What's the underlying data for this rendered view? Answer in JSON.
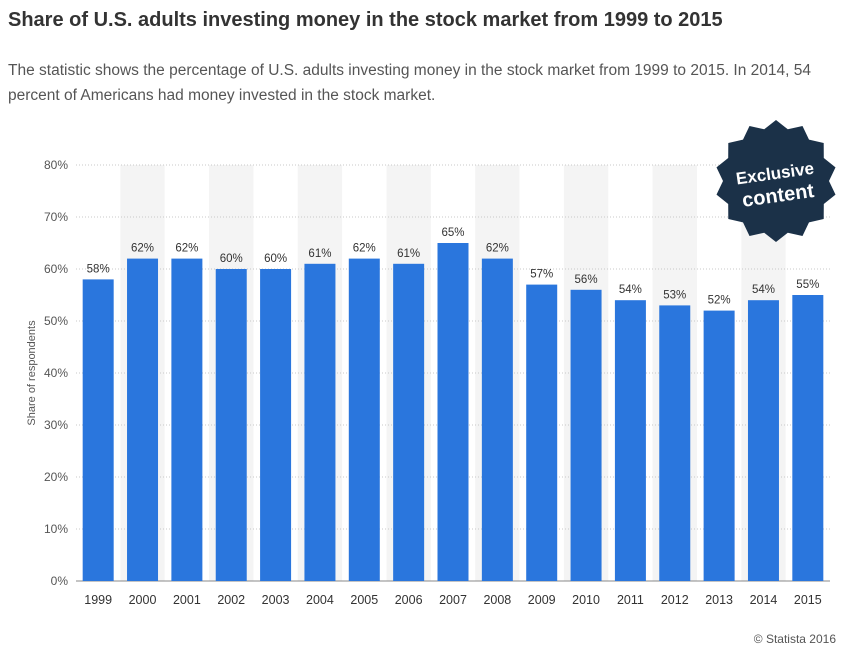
{
  "page": {
    "title": "Share of U.S. adults investing money in the stock market from 1999 to 2015",
    "description": "The statistic shows the percentage of U.S. adults investing money in the stock market from 1999 to 2015. In 2014, 54 percent of Americans had money invested in the stock market.",
    "badge_line1": "Exclusive",
    "badge_line2": "content",
    "copyright": "© Statista 2016"
  },
  "colors": {
    "bar": "#2a76dd",
    "band": "#f4f4f4",
    "grid": "#c8c8c8",
    "badge": "#1b3148",
    "text": "#333333"
  },
  "chart_data": {
    "type": "bar",
    "title": "",
    "xlabel": "",
    "ylabel": "Share of respondents",
    "categories": [
      "1999",
      "2000",
      "2001",
      "2002",
      "2003",
      "2004",
      "2005",
      "2006",
      "2007",
      "2008",
      "2009",
      "2010",
      "2011",
      "2012",
      "2013",
      "2014",
      "2015"
    ],
    "values": [
      58,
      62,
      62,
      60,
      60,
      61,
      62,
      61,
      65,
      62,
      57,
      56,
      54,
      53,
      52,
      54,
      55
    ],
    "data_labels": [
      "58%",
      "62%",
      "62%",
      "60%",
      "60%",
      "61%",
      "62%",
      "61%",
      "65%",
      "62%",
      "57%",
      "56%",
      "54%",
      "53%",
      "52%",
      "54%",
      "55%"
    ],
    "ylim": [
      0,
      80
    ],
    "yticks": [
      0,
      10,
      20,
      30,
      40,
      50,
      60,
      70,
      80
    ],
    "ytick_labels": [
      "0%",
      "10%",
      "20%",
      "30%",
      "40%",
      "50%",
      "60%",
      "70%",
      "80%"
    ],
    "grid": true,
    "legend": "none"
  }
}
